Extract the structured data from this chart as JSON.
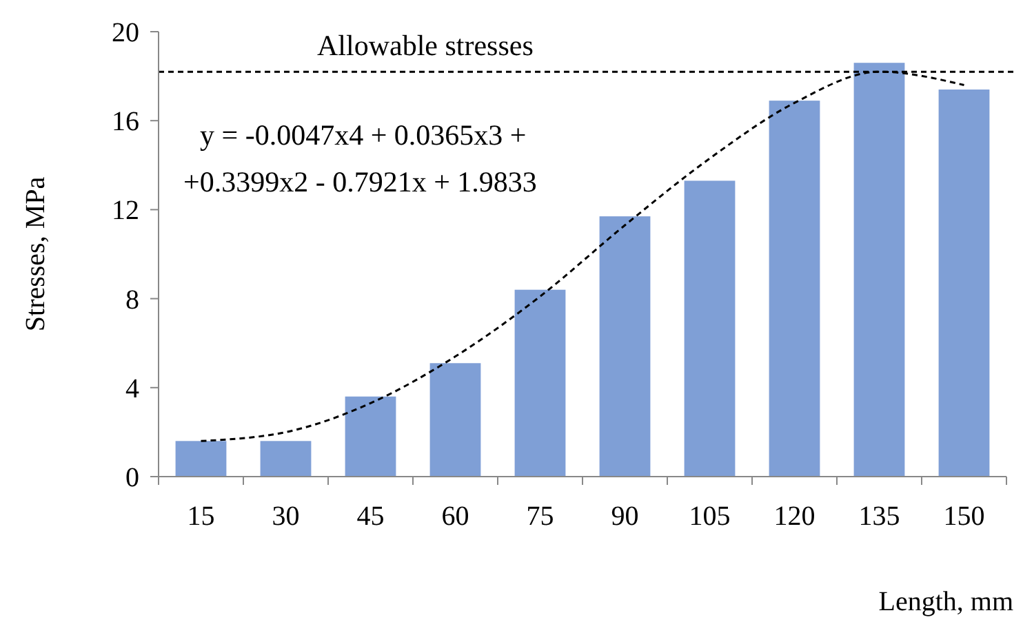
{
  "chart_data": {
    "type": "bar",
    "xlabel": "Length, mm",
    "ylabel": "Stresses, MPa",
    "categories": [
      "15",
      "30",
      "45",
      "60",
      "75",
      "90",
      "105",
      "120",
      "135",
      "150"
    ],
    "ylim": [
      0,
      20
    ],
    "yticks": [
      0,
      4,
      8,
      12,
      16,
      20
    ],
    "grid": false,
    "series": [
      {
        "color": "#7f9fd6",
        "values": [
          1.6,
          1.6,
          3.6,
          5.1,
          8.4,
          11.7,
          13.3,
          16.9,
          18.6,
          17.4
        ]
      },
      {
        "type": "line",
        "color": "#000000",
        "line_style": "dashed",
        "marker": "none",
        "x": [
          "15",
          "30",
          "45",
          "60",
          "75",
          "90",
          "105",
          "120",
          "135",
          "150"
        ],
        "values": [
          1.6,
          2.0,
          3.3,
          5.4,
          8.1,
          11.3,
          14.3,
          16.8,
          18.2,
          17.6
        ]
      }
    ],
    "ref_lines": [
      {
        "axis": "y",
        "value": 18.2,
        "label": "Allowable stresses",
        "color": "#000000",
        "line_style": "dashed"
      }
    ],
    "annotations": [
      "y = -0.0047x4 + 0.0365x3 +\n+0.3399x2 - 0.7921x + 1.9833"
    ]
  }
}
